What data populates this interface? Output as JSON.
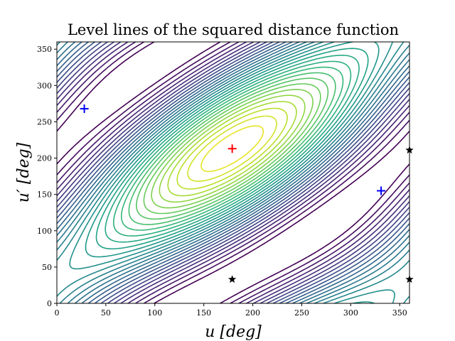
{
  "chart_data": {
    "type": "contour",
    "title": "Level lines of the squared distance function",
    "xlabel": "u [deg]",
    "ylabel": "u′ [deg]",
    "xlim": [
      0,
      360
    ],
    "ylim": [
      0,
      360
    ],
    "xticks": [
      0,
      50,
      100,
      150,
      200,
      250,
      300,
      350
    ],
    "yticks": [
      0,
      50,
      100,
      150,
      200,
      250,
      300,
      350
    ],
    "grid": false,
    "colormap": "viridis (reversed: minimum yellow, outer levels dark purple)",
    "markers": [
      {
        "kind": "minimum",
        "symbol": "plus",
        "color": "#ff0000",
        "x": 179,
        "y": 213
      },
      {
        "kind": "maximum",
        "symbol": "plus",
        "color": "#0000ff",
        "x": 28,
        "y": 268
      },
      {
        "kind": "maximum",
        "symbol": "plus",
        "color": "#0000ff",
        "x": 331,
        "y": 155
      },
      {
        "kind": "saddle",
        "symbol": "star",
        "color": "#000000",
        "x": 179,
        "y": 33
      },
      {
        "kind": "saddle",
        "symbol": "star",
        "color": "#000000",
        "x": 360,
        "y": 211
      },
      {
        "kind": "saddle",
        "symbol": "star",
        "color": "#000000",
        "x": 360,
        "y": 33
      }
    ]
  }
}
